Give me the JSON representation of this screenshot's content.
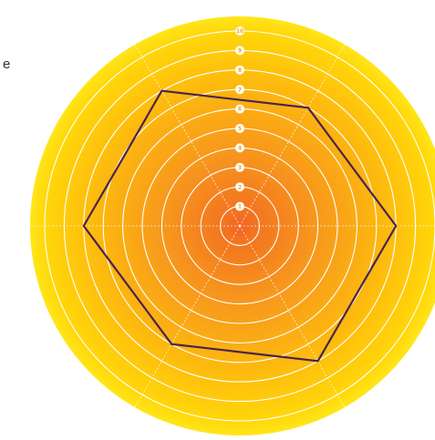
{
  "page": {
    "partial_text": "e"
  },
  "chart_data": {
    "type": "radar",
    "title": "",
    "rings": [
      1,
      2,
      3,
      4,
      5,
      6,
      7,
      8,
      9,
      10
    ],
    "ring_labels": [
      "1",
      "2",
      "3",
      "4",
      "5",
      "6",
      "7",
      "8",
      "9",
      "10"
    ],
    "range": [
      0,
      10
    ],
    "axes_count": 6,
    "series": [
      {
        "values": [
          8,
          7,
          8,
          8,
          7,
          8
        ]
      }
    ],
    "grid": true,
    "colors": {
      "background_outer": "#ffe619",
      "background_mid": "#fdc10d",
      "background_inner": "#f7a21b",
      "center": "#f26b21",
      "ring_line": "#ffffff",
      "label_fill": "#ffffff",
      "label_text": "#f7a21b",
      "series_line": "#4a2352"
    }
  }
}
